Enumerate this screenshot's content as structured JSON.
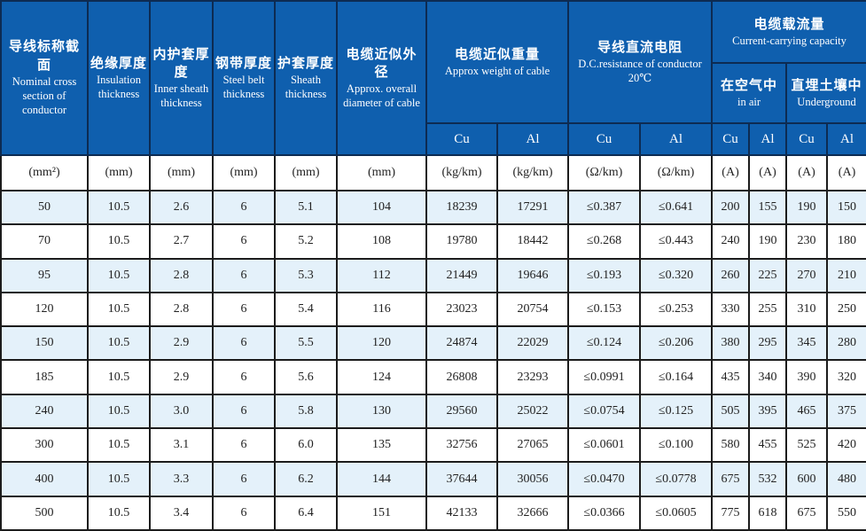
{
  "table": {
    "header": {
      "nominal": {
        "zh": "导线标称截面",
        "en": "Nominal cross section of conductor"
      },
      "insulation": {
        "zh": "绝缘厚度",
        "en": "Insulation thickness"
      },
      "inner_sheath": {
        "zh": "内护套厚度",
        "en": "Inner sheath thickness"
      },
      "steel_belt": {
        "zh": "钢带厚度",
        "en": "Steel belt thickness"
      },
      "sheath": {
        "zh": "护套厚度",
        "en": "Sheath thickness"
      },
      "diameter": {
        "zh": "电缆近似外径",
        "en": "Approx. overall diameter of cable"
      },
      "weight": {
        "zh": "电缆近似重量",
        "en": "Approx weight of cable"
      },
      "resistance": {
        "zh": "导线直流电阻",
        "en": "D.C.resistance of conductor",
        "temp": "20℃"
      },
      "capacity": {
        "zh": "电缆载流量",
        "en": "Current-carrying capacity"
      },
      "in_air": {
        "zh": "在空气中",
        "en": "in air"
      },
      "underground": {
        "zh": "直埋土壤中",
        "en": "Underground"
      },
      "cu": "Cu",
      "al": "Al"
    },
    "units": [
      "(mm²)",
      "(mm)",
      "(mm)",
      "(mm)",
      "(mm)",
      "(mm)",
      "(kg/km)",
      "(kg/km)",
      "(Ω/km)",
      "(Ω/km)",
      "(A)",
      "(A)",
      "(A)",
      "(A)"
    ],
    "rows": [
      [
        "50",
        "10.5",
        "2.6",
        "6",
        "5.1",
        "104",
        "18239",
        "17291",
        "≤0.387",
        "≤0.641",
        "200",
        "155",
        "190",
        "150"
      ],
      [
        "70",
        "10.5",
        "2.7",
        "6",
        "5.2",
        "108",
        "19780",
        "18442",
        "≤0.268",
        "≤0.443",
        "240",
        "190",
        "230",
        "180"
      ],
      [
        "95",
        "10.5",
        "2.8",
        "6",
        "5.3",
        "112",
        "21449",
        "19646",
        "≤0.193",
        "≤0.320",
        "260",
        "225",
        "270",
        "210"
      ],
      [
        "120",
        "10.5",
        "2.8",
        "6",
        "5.4",
        "116",
        "23023",
        "20754",
        "≤0.153",
        "≤0.253",
        "330",
        "255",
        "310",
        "250"
      ],
      [
        "150",
        "10.5",
        "2.9",
        "6",
        "5.5",
        "120",
        "24874",
        "22029",
        "≤0.124",
        "≤0.206",
        "380",
        "295",
        "345",
        "280"
      ],
      [
        "185",
        "10.5",
        "2.9",
        "6",
        "5.6",
        "124",
        "26808",
        "23293",
        "≤0.0991",
        "≤0.164",
        "435",
        "340",
        "390",
        "320"
      ],
      [
        "240",
        "10.5",
        "3.0",
        "6",
        "5.8",
        "130",
        "29560",
        "25022",
        "≤0.0754",
        "≤0.125",
        "505",
        "395",
        "465",
        "375"
      ],
      [
        "300",
        "10.5",
        "3.1",
        "6",
        "6.0",
        "135",
        "32756",
        "27065",
        "≤0.0601",
        "≤0.100",
        "580",
        "455",
        "525",
        "420"
      ],
      [
        "400",
        "10.5",
        "3.3",
        "6",
        "6.2",
        "144",
        "37644",
        "30056",
        "≤0.0470",
        "≤0.0778",
        "675",
        "532",
        "600",
        "480"
      ],
      [
        "500",
        "10.5",
        "3.4",
        "6",
        "6.4",
        "151",
        "42133",
        "32666",
        "≤0.0366",
        "≤0.0605",
        "775",
        "618",
        "675",
        "550"
      ]
    ],
    "colors": {
      "header_bg": "#0f5fae",
      "header_border": "#0d2b52",
      "alt_row_bg": "#e4f1fa",
      "grid": "#1c1c1c",
      "header_text": "#ffffff",
      "body_text": "#222222"
    }
  }
}
